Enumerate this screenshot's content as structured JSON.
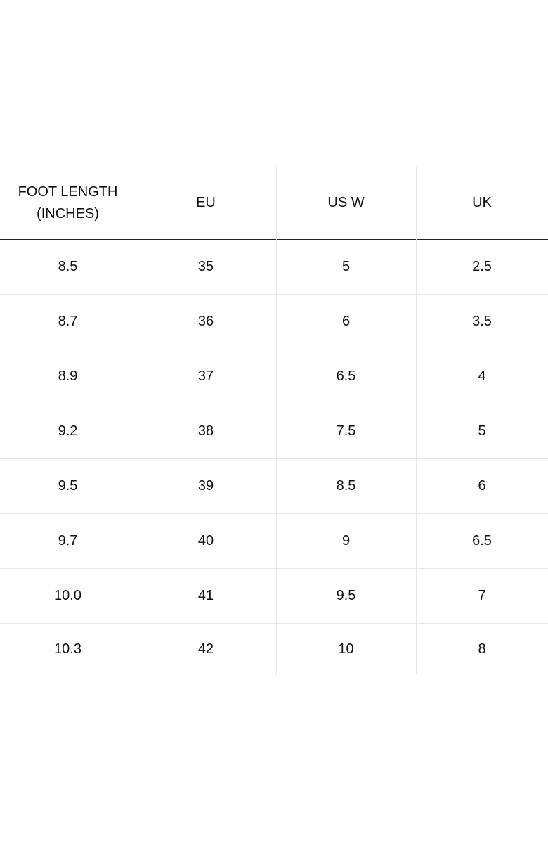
{
  "table": {
    "header": [
      "FOOT LENGTH (INCHES)",
      "EU",
      "US W",
      "UK"
    ],
    "rows": [
      [
        "8.5",
        "35",
        "5",
        "2.5"
      ],
      [
        "8.7",
        "36",
        "6",
        "3.5"
      ],
      [
        "8.9",
        "37",
        "6.5",
        "4"
      ],
      [
        "9.2",
        "38",
        "7.5",
        "5"
      ],
      [
        "9.5",
        "39",
        "8.5",
        "6"
      ],
      [
        "9.7",
        "40",
        "9",
        "6.5"
      ],
      [
        "10.0",
        "41",
        "9.5",
        "7"
      ],
      [
        "10.3",
        "42",
        "10",
        "8"
      ]
    ]
  }
}
